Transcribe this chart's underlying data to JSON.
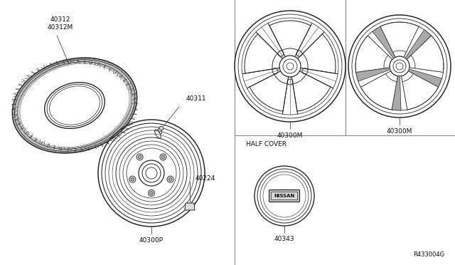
{
  "bg_color": "#ffffff",
  "line_color": "#2a2a2a",
  "divider_color": "#888888",
  "text_color": "#111111",
  "labels": {
    "tire_part1": "40312M",
    "tire_part2": "40312",
    "valve": "40311",
    "wheel": "40300P",
    "lug_nut": "40224",
    "wheel_alloy1": "40300M",
    "wheel_alloy2": "40300M",
    "half_cover": "HALF COVER",
    "hub_cap": "40343",
    "ref": "R433004G"
  }
}
